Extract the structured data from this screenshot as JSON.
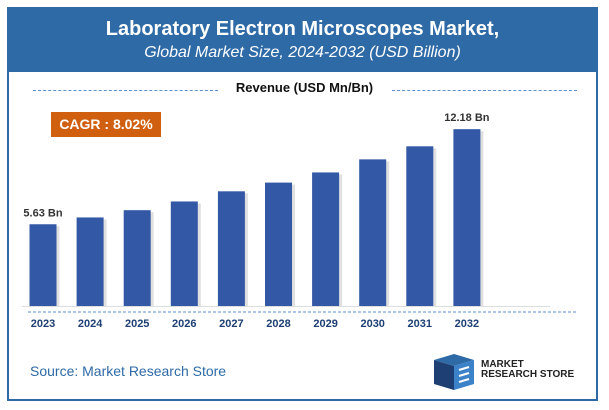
{
  "header": {
    "title": "Laboratory Electron Microscopes Market,",
    "subtitle": "Global Market Size, 2024-2032 (USD Billion)"
  },
  "cagr": "CAGR : 8.02%",
  "source": "Source: Market Research Store",
  "logo": {
    "line1": "MARKET",
    "line2": "RESEARCH STORE"
  },
  "colors": {
    "header": "#2e6aa6",
    "bar": "#3358a6",
    "cagr": "#d0600f"
  },
  "chart_data": {
    "type": "bar",
    "legend": "Revenue (USD Mn/Bn)",
    "categories": [
      "2023",
      "2024",
      "2025",
      "2026",
      "2027",
      "2028",
      "2029",
      "2030",
      "2031",
      "2032"
    ],
    "values": [
      5.63,
      6.1,
      6.6,
      7.2,
      7.9,
      8.5,
      9.2,
      10.1,
      11.0,
      12.18
    ],
    "data_labels": {
      "0": "5.63 Bn",
      "9": "12.18 Bn"
    },
    "ylim": [
      0,
      13.5
    ],
    "grid": false
  }
}
